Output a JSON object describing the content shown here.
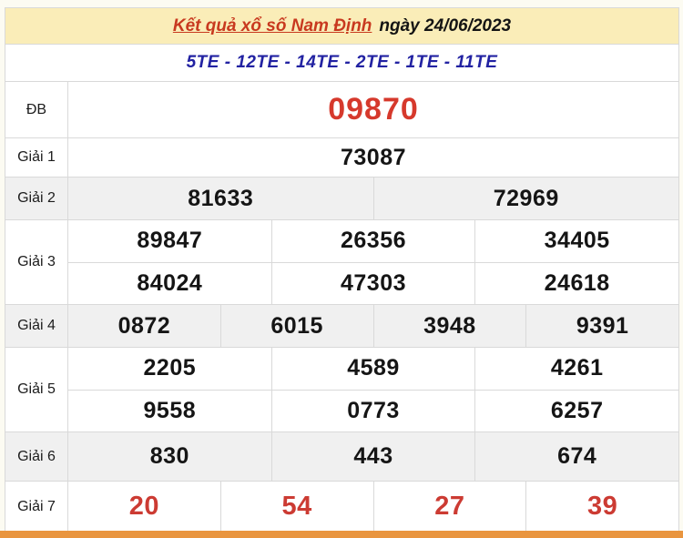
{
  "page": {
    "title_link": "Kết quả xổ số Nam Định",
    "date_text": "ngày 24/06/2023"
  },
  "subheader": {
    "codes": "5TE - 12TE - 14TE - 2TE - 1TE - 11TE"
  },
  "results": {
    "rows": [
      {
        "label": "ĐB",
        "lines": [
          [
            "09870"
          ]
        ]
      },
      {
        "label": "Giải 1",
        "lines": [
          [
            "73087"
          ]
        ]
      },
      {
        "label": "Giải 2",
        "lines": [
          [
            "81633",
            "72969"
          ]
        ]
      },
      {
        "label": "Giải 3",
        "lines": [
          [
            "89847",
            "26356",
            "34405"
          ],
          [
            "84024",
            "47303",
            "24618"
          ]
        ]
      },
      {
        "label": "Giải 4",
        "lines": [
          [
            "0872",
            "6015",
            "3948",
            "9391"
          ]
        ]
      },
      {
        "label": "Giải 5",
        "lines": [
          [
            "2205",
            "4589",
            "4261"
          ],
          [
            "9558",
            "0773",
            "6257"
          ]
        ]
      },
      {
        "label": "Giải 6",
        "lines": [
          [
            "830",
            "443",
            "674"
          ]
        ]
      },
      {
        "label": "Giải 7",
        "lines": [
          [
            "20",
            "54",
            "27",
            "39"
          ]
        ]
      }
    ]
  },
  "colors": {
    "page_bg": "#FCFBF2",
    "header_bg": "#FAEDB8",
    "title_red": "#C8391F",
    "codes_blue": "#2222A2",
    "special_red": "#D6392C",
    "g7_red": "#CC3B33",
    "shaded_row": "#F0F0F0",
    "border": "#D9D9D9",
    "bottom_bar_orange": "#E9953F"
  }
}
